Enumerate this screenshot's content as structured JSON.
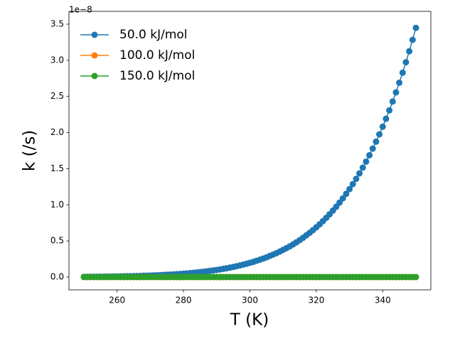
{
  "chart_data": {
    "type": "line",
    "xlabel": "T (K)",
    "ylabel": "k (/s)",
    "y_offset_label": "1e−8",
    "x": [
      250,
      251,
      252,
      253,
      254,
      255,
      256,
      257,
      258,
      259,
      260,
      261,
      262,
      263,
      264,
      265,
      266,
      267,
      268,
      269,
      270,
      271,
      272,
      273,
      274,
      275,
      276,
      277,
      278,
      279,
      280,
      281,
      282,
      283,
      284,
      285,
      286,
      287,
      288,
      289,
      290,
      291,
      292,
      293,
      294,
      295,
      296,
      297,
      298,
      299,
      300,
      301,
      302,
      303,
      304,
      305,
      306,
      307,
      308,
      309,
      310,
      311,
      312,
      313,
      314,
      315,
      316,
      317,
      318,
      319,
      320,
      321,
      322,
      323,
      324,
      325,
      326,
      327,
      328,
      329,
      330,
      331,
      332,
      333,
      334,
      335,
      336,
      337,
      338,
      339,
      340,
      341,
      342,
      343,
      344,
      345,
      346,
      347,
      348,
      349,
      350
    ],
    "series": [
      {
        "name": "50.0 kJ/mol",
        "color": "#1f77b4",
        "values": [
          0.00357,
          0.00393,
          0.00432,
          0.00475,
          0.00522,
          0.00573,
          0.00628,
          0.00689,
          0.00754,
          0.00825,
          0.00902,
          0.00986,
          0.0108,
          0.0117,
          0.0128,
          0.0139,
          0.0152,
          0.0165,
          0.018,
          0.0195,
          0.0212,
          0.023,
          0.025,
          0.0271,
          0.0294,
          0.0318,
          0.0344,
          0.0373,
          0.0403,
          0.0435,
          0.047,
          0.0507,
          0.0547,
          0.059,
          0.0636,
          0.0685,
          0.0737,
          0.0794,
          0.0854,
          0.0918,
          0.0986,
          0.106,
          0.114,
          0.122,
          0.131,
          0.14,
          0.15,
          0.161,
          0.172,
          0.184,
          0.197,
          0.21,
          0.225,
          0.24,
          0.256,
          0.273,
          0.292,
          0.311,
          0.331,
          0.353,
          0.376,
          0.4,
          0.425,
          0.452,
          0.481,
          0.511,
          0.543,
          0.577,
          0.612,
          0.649,
          0.689,
          0.73,
          0.774,
          0.82,
          0.869,
          0.92,
          0.973,
          1.03,
          1.089,
          1.152,
          1.217,
          1.286,
          1.359,
          1.435,
          1.514,
          1.598,
          1.686,
          1.778,
          1.874,
          1.975,
          2.081,
          2.191,
          2.307,
          2.429,
          2.556,
          2.689,
          2.828,
          2.973,
          3.125,
          3.283,
          3.449
        ]
      },
      {
        "name": "100.0 kJ/mol",
        "color": "#ff7f0e",
        "values": [
          0,
          0,
          0,
          0,
          0,
          0,
          0,
          0,
          0,
          0,
          0,
          0,
          0,
          0,
          0,
          0,
          0,
          0,
          0,
          0,
          0,
          0,
          0,
          0,
          0,
          0,
          0,
          0,
          0,
          0,
          0,
          0,
          0,
          0,
          0,
          0,
          0,
          0,
          0,
          0,
          0,
          0,
          0,
          0,
          0,
          0,
          0,
          0,
          0,
          0,
          0,
          0,
          0,
          0,
          0,
          0,
          0,
          0,
          0,
          0,
          0,
          0,
          0,
          0,
          0,
          0,
          0,
          0,
          0,
          0,
          0,
          0,
          0,
          0,
          0,
          0,
          0,
          0,
          0,
          0,
          0,
          0,
          0,
          0,
          0,
          0,
          0,
          0,
          0,
          0,
          0,
          0,
          0,
          0,
          0,
          0,
          0,
          0,
          0,
          0,
          0
        ]
      },
      {
        "name": "150.0 kJ/mol",
        "color": "#2ca02c",
        "values": [
          0,
          0,
          0,
          0,
          0,
          0,
          0,
          0,
          0,
          0,
          0,
          0,
          0,
          0,
          0,
          0,
          0,
          0,
          0,
          0,
          0,
          0,
          0,
          0,
          0,
          0,
          0,
          0,
          0,
          0,
          0,
          0,
          0,
          0,
          0,
          0,
          0,
          0,
          0,
          0,
          0,
          0,
          0,
          0,
          0,
          0,
          0,
          0,
          0,
          0,
          0,
          0,
          0,
          0,
          0,
          0,
          0,
          0,
          0,
          0,
          0,
          0,
          0,
          0,
          0,
          0,
          0,
          0,
          0,
          0,
          0,
          0,
          0,
          0,
          0,
          0,
          0,
          0,
          0,
          0,
          0,
          0,
          0,
          0,
          0,
          0,
          0,
          0,
          0,
          0,
          0,
          0,
          0,
          0,
          0,
          0,
          0,
          0,
          0,
          0,
          0
        ]
      }
    ],
    "xlim": [
      245.5,
      354.5
    ],
    "xticks": [
      260,
      280,
      300,
      320,
      340
    ],
    "ylim": [
      -0.177,
      3.677
    ],
    "yticks": [
      {
        "value": 0,
        "label": "0.0"
      },
      0.5,
      {
        "value": 1,
        "label": "1.0"
      },
      1.5,
      {
        "value": 2,
        "label": "2.0"
      },
      2.5,
      {
        "value": 3,
        "label": "3.0"
      },
      3.5
    ],
    "legend": "upper left",
    "grid": false
  }
}
